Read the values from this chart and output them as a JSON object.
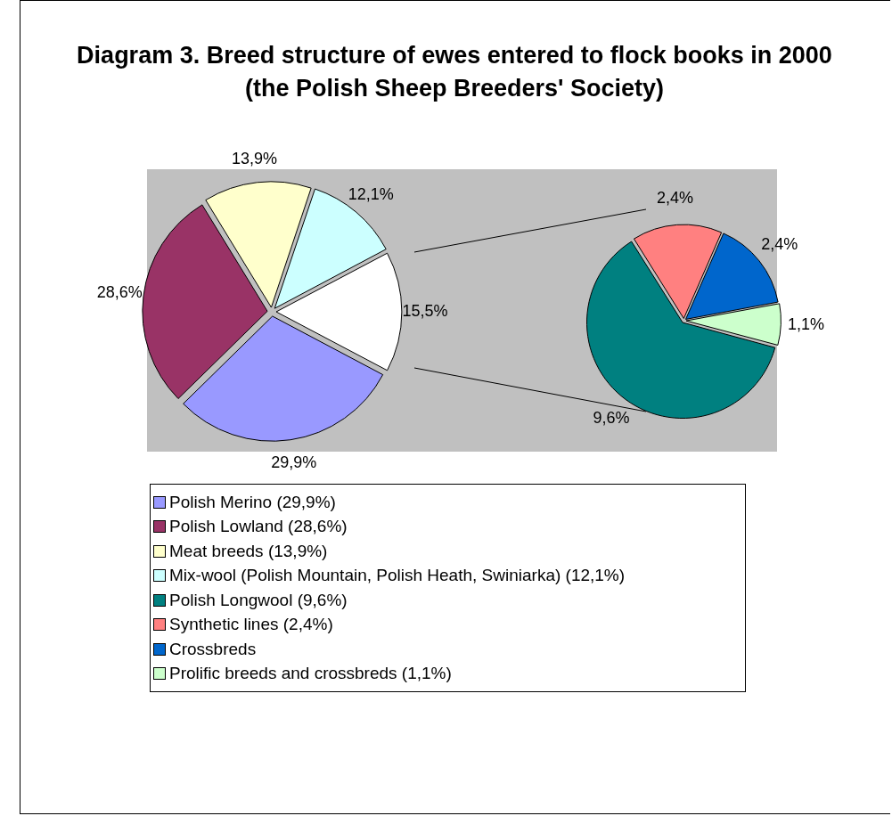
{
  "chart_data": [
    {
      "type": "pie",
      "title": "Diagram 3. Breed structure of ewes entered to flock books in 2000 (the Polish Sheep Breeders' Society)",
      "categories": [
        "Polish Merino (29,9%)",
        "Polish Lowland (28,6%)",
        "Meat breeds (13,9%)",
        "Mix-wool (Polish Mountain, Polish Heath, Swiniarka) (12,1%)",
        null
      ],
      "values": [
        29.9,
        28.6,
        13.9,
        12.1,
        15.5
      ],
      "colors": [
        "#9999ff",
        "#993366",
        "#ffffcc",
        "#ccffff",
        "#ffffff"
      ],
      "value_labels": [
        "29,9%",
        "28,6%",
        "13,9%",
        "12,1%",
        "15,5%"
      ],
      "legend": "bottom"
    },
    {
      "type": "pie",
      "categories": [
        "Polish Longwool (9,6%)",
        "Synthetic lines (2,4%)",
        "Crossbreds",
        "Prolific breeds and crossbreds (1,1%)"
      ],
      "values": [
        9.6,
        2.4,
        2.4,
        1.1
      ],
      "colors": [
        "#008080",
        "#ff8080",
        "#0066cc",
        "#ccffcc"
      ],
      "value_labels": [
        "9,6%",
        "2,4%",
        "2,4%",
        "1,1%"
      ],
      "legend": "bottom"
    }
  ]
}
